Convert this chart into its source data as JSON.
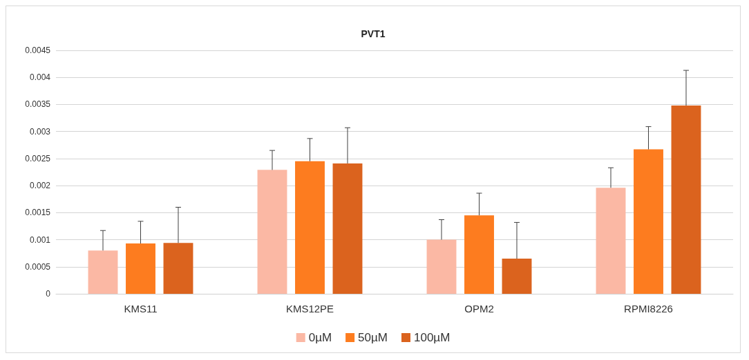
{
  "chart_data": {
    "type": "bar",
    "title": "PVT1",
    "categories": [
      "KMS11",
      "KMS12PE",
      "OPM2",
      "RPMI8226"
    ],
    "series": [
      {
        "name": "0µM",
        "color": "#fbb8a4",
        "values": [
          0.0008,
          0.00229,
          0.001,
          0.00196
        ],
        "errors": [
          [
            0.0008,
            0.00117
          ],
          [
            0.00229,
            0.00265
          ],
          [
            0.001,
            0.00137
          ],
          [
            0.00196,
            0.00233
          ]
        ]
      },
      {
        "name": "50µM",
        "color": "#fd7c1f",
        "values": [
          0.00093,
          0.00245,
          0.00145,
          0.00267
        ],
        "errors": [
          [
            0.00093,
            0.00134
          ],
          [
            0.00245,
            0.00287
          ],
          [
            0.00145,
            0.00186
          ],
          [
            0.00267,
            0.00309
          ]
        ]
      },
      {
        "name": "100µM",
        "color": "#db631e",
        "values": [
          0.00094,
          0.00241,
          0.00065,
          0.00348
        ],
        "errors": [
          [
            0.00094,
            0.0016
          ],
          [
            0.00241,
            0.00307
          ],
          [
            0.00065,
            0.00132
          ],
          [
            0.00348,
            0.00413
          ]
        ]
      }
    ],
    "ylim": [
      0,
      0.0045
    ],
    "yticks": [
      0,
      0.0005,
      0.001,
      0.0015,
      0.002,
      0.0025,
      0.003,
      0.0035,
      0.004,
      0.0045
    ],
    "grid": "y",
    "legend": "bottom"
  }
}
